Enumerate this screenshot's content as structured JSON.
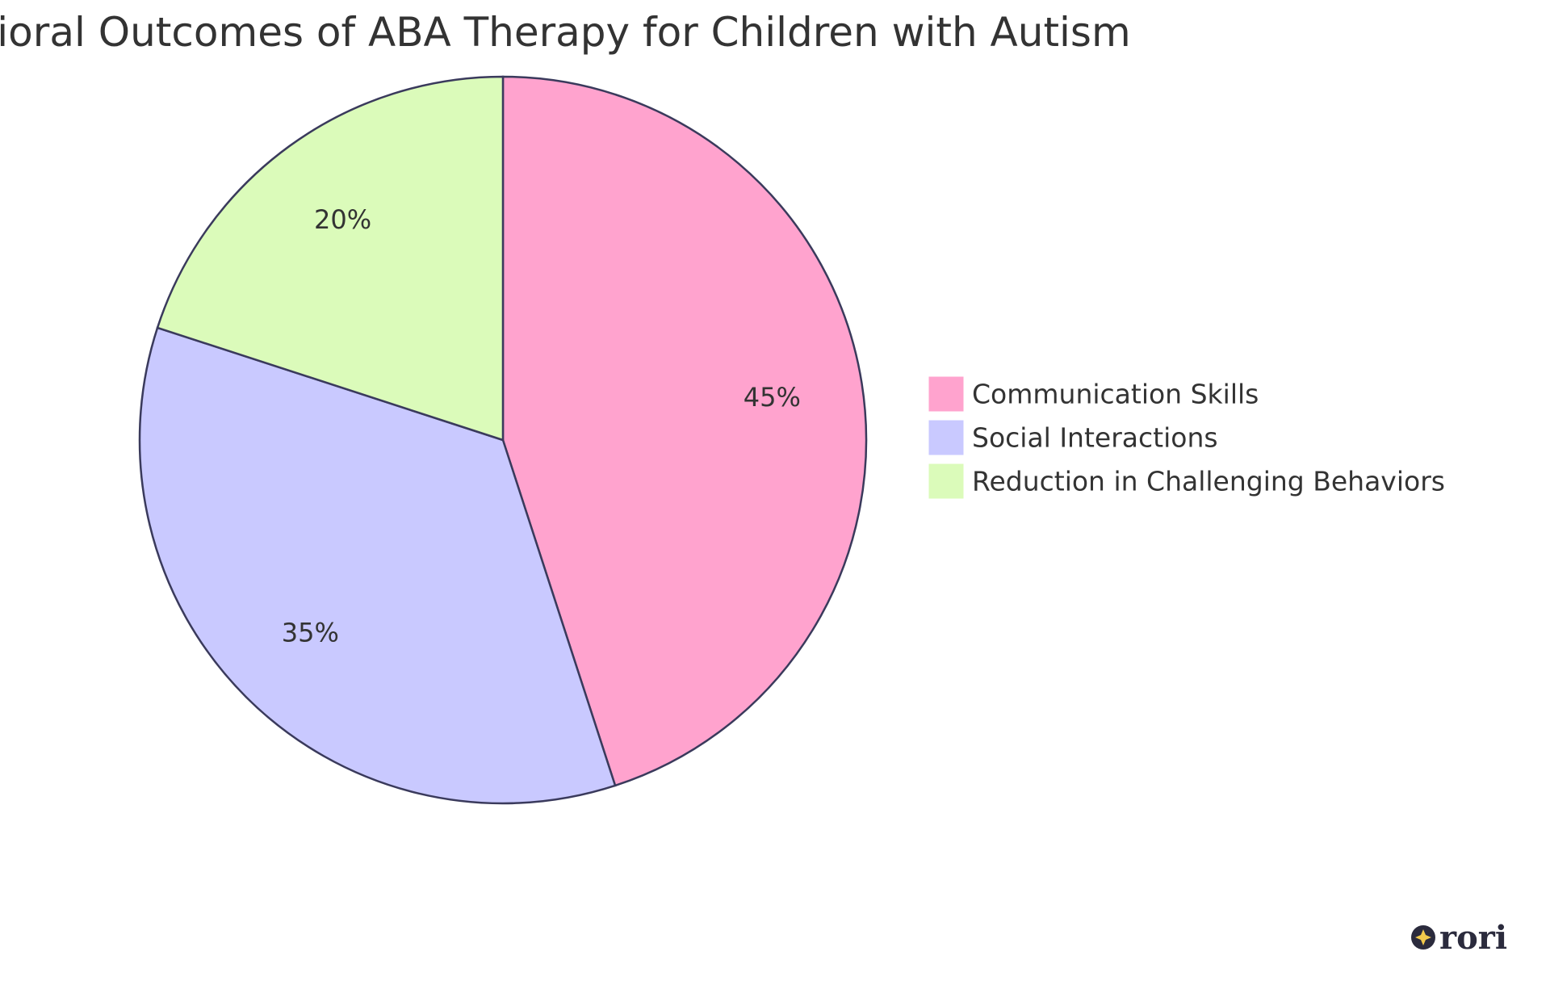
{
  "chart_data": {
    "type": "pie",
    "title": "Behavioral Outcomes of ABA Therapy for Children with Autism",
    "slices": [
      {
        "label": "Communication Skills",
        "value": 45,
        "display": "45%",
        "color": "#FFA3CE"
      },
      {
        "label": "Social Interactions",
        "value": 35,
        "display": "35%",
        "color": "#C9C9FF"
      },
      {
        "label": "Reduction in Challenging Behaviors",
        "value": 20,
        "display": "20%",
        "color": "#DBFBBA"
      }
    ],
    "stroke_color": "#3A3A5C",
    "legend_placement": "right"
  },
  "branding": {
    "logo_text": "rori",
    "logo_icon": "sparkle-icon"
  }
}
